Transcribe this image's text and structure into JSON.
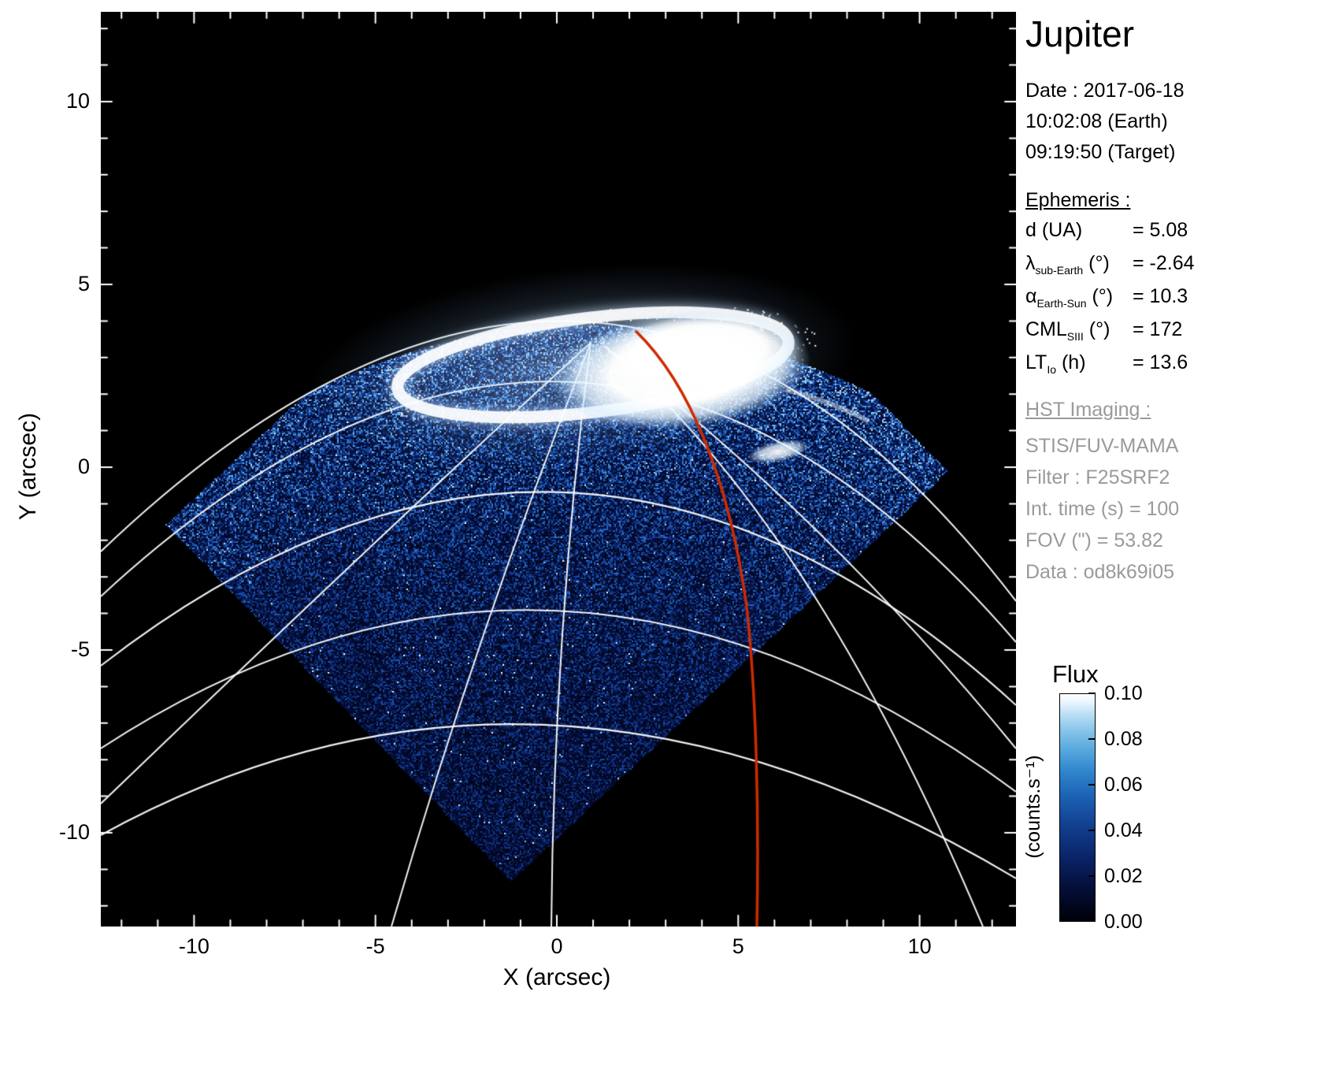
{
  "sidebar": {
    "title": "Jupiter",
    "date_line": "Date : 2017-06-18",
    "time_earth": "10:02:08 (Earth)",
    "time_target": "09:19:50 (Target)",
    "ephemeris_heading": "Ephemeris :",
    "ephemeris_rows": [
      {
        "sym": "d",
        "sub": "",
        "unit": "(UA)",
        "val": "= 5.08"
      },
      {
        "sym": "λ",
        "sub": "sub-Earth",
        "unit": "(°)",
        "val": "= -2.64"
      },
      {
        "sym": "α",
        "sub": "Earth-Sun",
        "unit": "(°)",
        "val": "= 10.3"
      },
      {
        "sym": "CML",
        "sub": "SIII",
        "unit": "(°)",
        "val": "= 172"
      },
      {
        "sym": "LT",
        "sub": "Io",
        "unit": "(h)",
        "val": "= 13.6"
      }
    ],
    "hst_heading": "HST Imaging :",
    "hst_lines": [
      "STIS/FUV-MAMA",
      "Filter : F25SRF2",
      "Int. time (s) = 100",
      "FOV (\") = 53.82",
      "Data : od8k69i05"
    ]
  },
  "axes": {
    "x_label": "X (arcsec)",
    "y_label": "Y (arcsec)",
    "x_ticks": [
      -10,
      -5,
      0,
      5,
      10
    ],
    "y_ticks": [
      10,
      5,
      0,
      -5,
      -10
    ]
  },
  "colorbar": {
    "title": "Flux",
    "unit": "(counts.s⁻¹)",
    "tick_labels": [
      "0.10",
      "0.08",
      "0.06",
      "0.04",
      "0.02",
      "0.00"
    ]
  },
  "chart_data": {
    "type": "heatmap",
    "title": "Jupiter",
    "xlabel": "X (arcsec)",
    "ylabel": "Y (arcsec)",
    "xlim": [
      -12.6,
      12.7
    ],
    "ylim": [
      -12.6,
      12.5
    ],
    "x_ticks": [
      -10,
      -5,
      0,
      5,
      10
    ],
    "y_ticks": [
      -10,
      -5,
      0,
      5,
      10
    ],
    "background": "#000000",
    "colormap": "black-blue-white",
    "flux_range_counts_per_s": [
      0.0,
      0.1
    ],
    "colorbar_ticks": [
      0.0,
      0.02,
      0.04,
      0.06,
      0.08,
      0.1
    ],
    "graticule": "white planetary latitude/longitude grid over the disk, pole near aurora",
    "graticule_color": "#ffffff",
    "detector_fov_diamond_arcsec": {
      "left": [
        -10.8,
        -1.6
      ],
      "bottom": [
        -1.3,
        -11.3
      ],
      "right": [
        10.8,
        -0.1
      ],
      "top": [
        1.3,
        9.6
      ]
    },
    "disk_emission": "speckled blue airglow noise ~0.01-0.05 counts/s filling detector diamond below the limb",
    "aurora_oval": {
      "center_arcsec": [
        1.5,
        2.7
      ],
      "extent_x_arcsec": [
        -4.6,
        6.9
      ],
      "extent_y_arcsec": [
        0.9,
        4.2
      ],
      "peak_flux": 0.1,
      "morphology": "bright saturated main oval with dimmer interior and thin western arc"
    },
    "io_footprint_spot_arcsec": [
      6.1,
      0.4
    ],
    "red_meridian_track_arcsec": [
      [
        2.2,
        3.7
      ],
      [
        3.8,
        1.5
      ],
      [
        4.8,
        -1.5
      ],
      [
        5.3,
        -5.0
      ],
      [
        5.5,
        -12.6
      ]
    ],
    "track_color": "#cc2e00"
  }
}
